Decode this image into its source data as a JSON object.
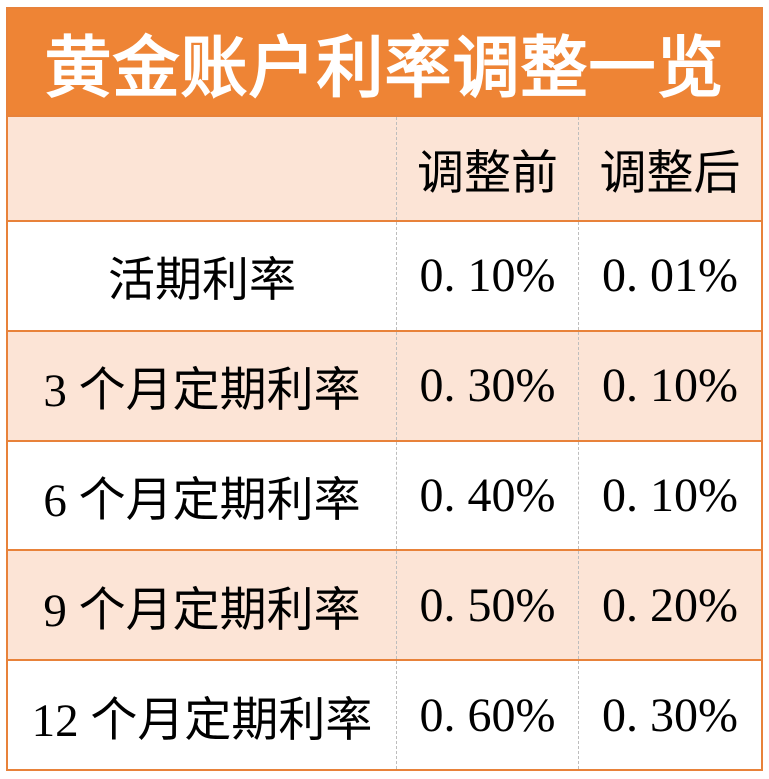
{
  "title": "黄金账户利率调整一览",
  "columns": {
    "row_header": "",
    "before_label": "调整前",
    "after_label": "调整后"
  },
  "rows": [
    {
      "label": "活期利率",
      "before": "0. 10%",
      "after": "0. 01%"
    },
    {
      "label": "3 个月定期利率",
      "before": "0. 30%",
      "after": "0. 10%"
    },
    {
      "label": "6 个月定期利率",
      "before": "0. 40%",
      "after": "0. 10%"
    },
    {
      "label": "9 个月定期利率",
      "before": "0. 50%",
      "after": "0. 20%"
    },
    {
      "label": "12 个月定期利率",
      "before": "0. 60%",
      "after": "0. 30%"
    }
  ],
  "colors": {
    "title_band_bg": "#ee8435",
    "title_text": "#ffffff",
    "alt_row_bg": "#fce4d6",
    "row_border": "#e8823a",
    "column_divider": "#bdbdbd",
    "body_text": "#000000"
  },
  "chart_data": {
    "type": "table",
    "title": "黄金账户利率调整一览",
    "categories": [
      "活期利率",
      "3 个月定期利率",
      "6 个月定期利率",
      "9 个月定期利率",
      "12 个月定期利率"
    ],
    "series": [
      {
        "name": "调整前",
        "values": [
          0.1,
          0.3,
          0.4,
          0.5,
          0.6
        ],
        "unit": "%"
      },
      {
        "name": "调整后",
        "values": [
          0.01,
          0.1,
          0.1,
          0.2,
          0.3
        ],
        "unit": "%"
      }
    ]
  }
}
